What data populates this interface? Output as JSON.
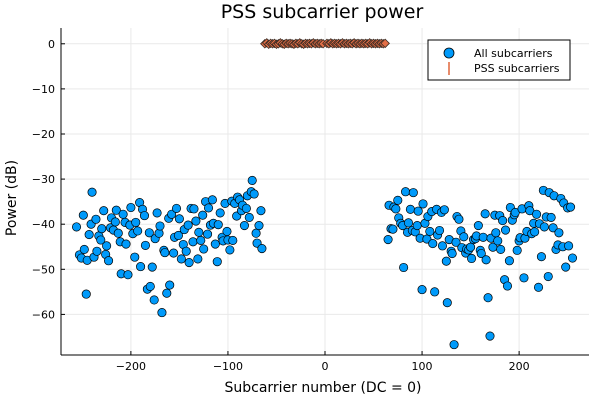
{
  "chart_data": {
    "type": "scatter",
    "title": "PSS subcarrier power",
    "xlabel": "Subcarrier number (DC = 0)",
    "ylabel": "Power (dB)",
    "xlim": [
      -272,
      272
    ],
    "ylim": [
      -69,
      3.5
    ],
    "xticks": [
      -200,
      -100,
      0,
      100,
      200
    ],
    "xtick_labels": [
      "−200",
      "−100",
      "0",
      "100",
      "200"
    ],
    "yticks": [
      0,
      -10,
      -20,
      -30,
      -40,
      -50,
      -60
    ],
    "ytick_labels": [
      "0",
      "−10",
      "−20",
      "−30",
      "−40",
      "−50",
      "−60"
    ],
    "grid": true,
    "legend_position": "top-right",
    "colors": {
      "all": "#009AFA",
      "pss": "#E36F47"
    },
    "series": [
      {
        "name": "All subcarriers",
        "marker": "circle",
        "points": [
          [
            -256,
            -40.6
          ],
          [
            -253,
            -46.8
          ],
          [
            -251,
            -47.5
          ],
          [
            -249,
            -38.0
          ],
          [
            -248,
            -45.6
          ],
          [
            -246,
            -55.5
          ],
          [
            -245,
            -48.0
          ],
          [
            -243,
            -42.3
          ],
          [
            -241,
            -40.0
          ],
          [
            -240,
            -32.9
          ],
          [
            -238,
            -47.3
          ],
          [
            -236,
            -38.9
          ],
          [
            -235,
            -46.0
          ],
          [
            -233,
            -42.6
          ],
          [
            -231,
            -43.5
          ],
          [
            -230,
            -41.0
          ],
          [
            -228,
            -37.0
          ],
          [
            -226,
            -46.7
          ],
          [
            -225,
            -44.8
          ],
          [
            -223,
            -48.1
          ],
          [
            -221,
            -40.8
          ],
          [
            -220,
            -38.6
          ],
          [
            -218,
            -41.3
          ],
          [
            -216,
            -39.5
          ],
          [
            -215,
            -36.9
          ],
          [
            -213,
            -42.0
          ],
          [
            -211,
            -43.9
          ],
          [
            -210,
            -51.0
          ],
          [
            -208,
            -37.8
          ],
          [
            -206,
            -39.6
          ],
          [
            -205,
            -44.4
          ],
          [
            -203,
            -51.2
          ],
          [
            -201,
            -40.2
          ],
          [
            -200,
            -36.3
          ],
          [
            -198,
            -42.1
          ],
          [
            -196,
            -47.3
          ],
          [
            -195,
            -39.6
          ],
          [
            -193,
            -41.5
          ],
          [
            -191,
            -35.2
          ],
          [
            -190,
            -49.4
          ],
          [
            -188,
            -36.7
          ],
          [
            -186,
            -38.1
          ],
          [
            -185,
            -44.7
          ],
          [
            -183,
            -54.4
          ],
          [
            -181,
            -41.9
          ],
          [
            -180,
            -53.8
          ],
          [
            -178,
            -49.5
          ],
          [
            -176,
            -56.8
          ],
          [
            -175,
            -43.2
          ],
          [
            -173,
            -37.5
          ],
          [
            -171,
            -42.0
          ],
          [
            -170,
            -40.4
          ],
          [
            -168,
            -59.6
          ],
          [
            -166,
            -45.8
          ],
          [
            -165,
            -46.3
          ],
          [
            -163,
            -55.3
          ],
          [
            -161,
            -38.7
          ],
          [
            -160,
            -53.5
          ],
          [
            -158,
            -37.8
          ],
          [
            -156,
            -46.4
          ],
          [
            -155,
            -42.9
          ],
          [
            -153,
            -36.5
          ],
          [
            -151,
            -42.5
          ],
          [
            -150,
            -38.8
          ],
          [
            -148,
            -47.7
          ],
          [
            -146,
            -44.5
          ],
          [
            -145,
            -41.2
          ],
          [
            -143,
            -46.0
          ],
          [
            -141,
            -40.2
          ],
          [
            -140,
            -48.5
          ],
          [
            -138,
            -36.5
          ],
          [
            -136,
            -43.9
          ],
          [
            -135,
            -36.6
          ],
          [
            -133,
            -39.3
          ],
          [
            -131,
            -47.7
          ],
          [
            -130,
            -41.8
          ],
          [
            -128,
            -43.6
          ],
          [
            -126,
            -38.0
          ],
          [
            -125,
            -45.5
          ],
          [
            -123,
            -35.0
          ],
          [
            -121,
            -42.2
          ],
          [
            -120,
            -36.4
          ],
          [
            -118,
            -40.2
          ],
          [
            -116,
            -34.6
          ],
          [
            -115,
            -39.8
          ],
          [
            -113,
            -44.4
          ],
          [
            -111,
            -48.3
          ],
          [
            -110,
            -40.1
          ],
          [
            -108,
            -37.5
          ],
          [
            -106,
            -42.9
          ],
          [
            -105,
            -43.7
          ],
          [
            -103,
            -35.4
          ],
          [
            -101,
            -41.6
          ],
          [
            -100,
            -43.5
          ],
          [
            -98,
            -45.7
          ],
          [
            -96,
            -34.9
          ],
          [
            -95,
            -43.6
          ],
          [
            -93,
            -35.4
          ],
          [
            -91,
            -38.2
          ],
          [
            -90,
            -34.0
          ],
          [
            -88,
            -34.6
          ],
          [
            -86,
            -37.0
          ],
          [
            -85,
            -35.8
          ],
          [
            -83,
            -40.3
          ],
          [
            -81,
            -36.5
          ],
          [
            -80,
            -33.7
          ],
          [
            -78,
            -38.5
          ],
          [
            -76,
            -32.8
          ],
          [
            -75,
            -30.3
          ],
          [
            -73,
            -33.3
          ],
          [
            -71,
            -42.0
          ],
          [
            -70,
            -44.2
          ],
          [
            -68,
            -40.3
          ],
          [
            -66,
            -37.0
          ],
          [
            -65,
            -45.4
          ],
          [
            65,
            -43.4
          ],
          [
            66,
            -35.8
          ],
          [
            68,
            -41.0
          ],
          [
            70,
            -41.1
          ],
          [
            71,
            -36.2
          ],
          [
            73,
            -36.6
          ],
          [
            75,
            -34.7
          ],
          [
            76,
            -38.6
          ],
          [
            78,
            -39.8
          ],
          [
            80,
            -40.3
          ],
          [
            81,
            -49.6
          ],
          [
            83,
            -32.8
          ],
          [
            85,
            -41.8
          ],
          [
            86,
            -39.7
          ],
          [
            88,
            -36.7
          ],
          [
            90,
            -41.4
          ],
          [
            91,
            -33.0
          ],
          [
            93,
            -41.7
          ],
          [
            95,
            -40.3
          ],
          [
            96,
            -37.1
          ],
          [
            98,
            -43.1
          ],
          [
            100,
            -54.5
          ],
          [
            101,
            -35.5
          ],
          [
            103,
            -39.8
          ],
          [
            105,
            -43.3
          ],
          [
            106,
            -38.3
          ],
          [
            108,
            -41.6
          ],
          [
            110,
            -37.2
          ],
          [
            111,
            -44.3
          ],
          [
            113,
            -55.0
          ],
          [
            115,
            -36.7
          ],
          [
            116,
            -42.4
          ],
          [
            118,
            -41.4
          ],
          [
            120,
            -37.4
          ],
          [
            121,
            -44.8
          ],
          [
            123,
            -36.8
          ],
          [
            125,
            -48.2
          ],
          [
            126,
            -57.4
          ],
          [
            128,
            -43.4
          ],
          [
            130,
            -46.0
          ],
          [
            131,
            -46.5
          ],
          [
            133,
            -66.7
          ],
          [
            135,
            -44.0
          ],
          [
            136,
            -38.3
          ],
          [
            138,
            -38.9
          ],
          [
            140,
            -41.5
          ],
          [
            141,
            -45.2
          ],
          [
            143,
            -42.8
          ],
          [
            145,
            -46.4
          ],
          [
            146,
            -45.5
          ],
          [
            148,
            -45.7
          ],
          [
            150,
            -45.1
          ],
          [
            151,
            -47.6
          ],
          [
            153,
            -43.4
          ],
          [
            155,
            -43.2
          ],
          [
            156,
            -42.6
          ],
          [
            158,
            -40.3
          ],
          [
            160,
            -45.8
          ],
          [
            161,
            -46.5
          ],
          [
            163,
            -42.9
          ],
          [
            165,
            -37.7
          ],
          [
            166,
            -47.9
          ],
          [
            168,
            -56.3
          ],
          [
            170,
            -64.8
          ],
          [
            171,
            -43.1
          ],
          [
            173,
            -45.1
          ],
          [
            175,
            -38.0
          ],
          [
            176,
            -41.9
          ],
          [
            178,
            -43.7
          ],
          [
            180,
            -38.1
          ],
          [
            181,
            -45.6
          ],
          [
            183,
            -39.2
          ],
          [
            185,
            -52.3
          ],
          [
            186,
            -41.3
          ],
          [
            188,
            -53.7
          ],
          [
            190,
            -48.1
          ],
          [
            191,
            -36.3
          ],
          [
            193,
            -39.1
          ],
          [
            195,
            -37.9
          ],
          [
            196,
            -37.4
          ],
          [
            198,
            -45.8
          ],
          [
            200,
            -43.7
          ],
          [
            201,
            -43.0
          ],
          [
            203,
            -36.6
          ],
          [
            205,
            -51.9
          ],
          [
            206,
            -43.1
          ],
          [
            208,
            -41.6
          ],
          [
            210,
            -35.9
          ],
          [
            211,
            -37.0
          ],
          [
            213,
            -42.1
          ],
          [
            215,
            -39.8
          ],
          [
            216,
            -41.7
          ],
          [
            218,
            -37.8
          ],
          [
            220,
            -54.0
          ],
          [
            221,
            -39.9
          ],
          [
            223,
            -47.2
          ],
          [
            225,
            -32.5
          ],
          [
            226,
            -40.6
          ],
          [
            228,
            -38.4
          ],
          [
            230,
            -51.6
          ],
          [
            231,
            -33.0
          ],
          [
            233,
            -38.5
          ],
          [
            235,
            -40.8
          ],
          [
            236,
            -33.7
          ],
          [
            238,
            -45.6
          ],
          [
            240,
            -44.6
          ],
          [
            241,
            -41.9
          ],
          [
            243,
            -34.3
          ],
          [
            245,
            -45.0
          ],
          [
            246,
            -35.3
          ],
          [
            248,
            -49.5
          ],
          [
            250,
            -36.4
          ],
          [
            251,
            -44.8
          ],
          [
            253,
            -36.2
          ],
          [
            255,
            -47.5
          ]
        ]
      },
      {
        "name": "PSS subcarriers",
        "marker": "diamond",
        "points": [
          [
            -62,
            0.0
          ],
          [
            -60,
            0.2
          ],
          [
            -58,
            -0.1
          ],
          [
            -56,
            0.1
          ],
          [
            -54,
            0.0
          ],
          [
            -52,
            0.1
          ],
          [
            -50,
            -0.1
          ],
          [
            -48,
            0.0
          ],
          [
            -46,
            0.2
          ],
          [
            -44,
            0.0
          ],
          [
            -42,
            -0.1
          ],
          [
            -40,
            0.1
          ],
          [
            -38,
            0.0
          ],
          [
            -36,
            0.1
          ],
          [
            -34,
            0.0
          ],
          [
            -32,
            -0.1
          ],
          [
            -30,
            0.1
          ],
          [
            -28,
            0.0
          ],
          [
            -26,
            0.2
          ],
          [
            -24,
            0.0
          ],
          [
            -22,
            -0.1
          ],
          [
            -20,
            0.1
          ],
          [
            -18,
            0.0
          ],
          [
            -16,
            0.1
          ],
          [
            -14,
            0.0
          ],
          [
            -12,
            0.2
          ],
          [
            -10,
            0.0
          ],
          [
            -8,
            0.1
          ],
          [
            -6,
            0.0
          ],
          [
            -4,
            0.1
          ],
          [
            -2,
            0.0
          ],
          [
            2,
            0.1
          ],
          [
            4,
            0.0
          ],
          [
            6,
            0.2
          ],
          [
            8,
            0.0
          ],
          [
            10,
            0.1
          ],
          [
            12,
            0.0
          ],
          [
            14,
            0.1
          ],
          [
            16,
            0.0
          ],
          [
            18,
            0.2
          ],
          [
            20,
            0.0
          ],
          [
            22,
            0.1
          ],
          [
            24,
            0.0
          ],
          [
            26,
            0.1
          ],
          [
            28,
            0.0
          ],
          [
            30,
            0.2
          ],
          [
            32,
            0.0
          ],
          [
            34,
            0.1
          ],
          [
            36,
            0.0
          ],
          [
            38,
            0.1
          ],
          [
            40,
            0.0
          ],
          [
            42,
            0.1
          ],
          [
            44,
            0.0
          ],
          [
            46,
            0.2
          ],
          [
            48,
            0.0
          ],
          [
            50,
            0.1
          ],
          [
            52,
            0.0
          ],
          [
            54,
            0.1
          ],
          [
            56,
            0.0
          ],
          [
            58,
            0.1
          ],
          [
            60,
            0.0
          ],
          [
            62,
            0.1
          ]
        ]
      }
    ]
  }
}
